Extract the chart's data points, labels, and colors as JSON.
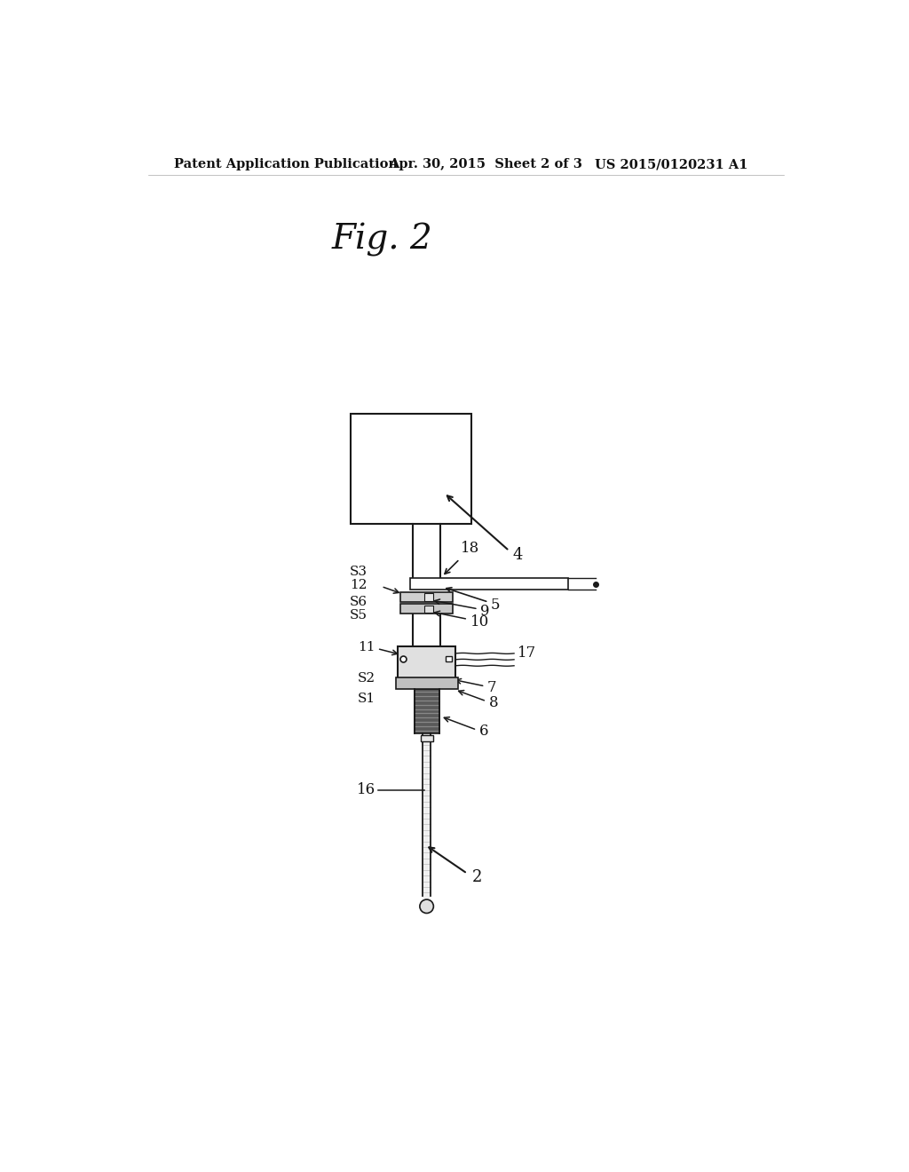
{
  "bg_color": "#ffffff",
  "header_left": "Patent Application Publication",
  "header_mid": "Apr. 30, 2015  Sheet 2 of 3",
  "header_right": "US 2015/0120231 A1",
  "line_color": "#1a1a1a",
  "text_color": "#111111"
}
